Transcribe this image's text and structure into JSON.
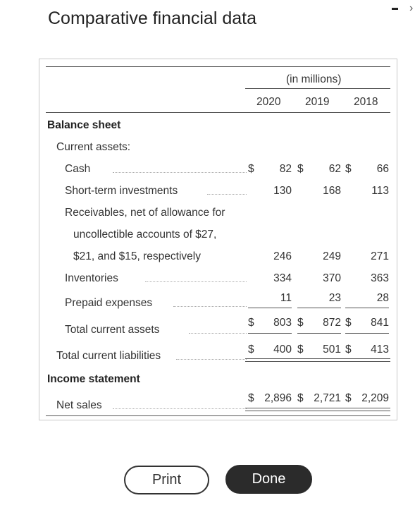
{
  "title": "Comparative financial data",
  "header": {
    "unit": "(in millions)",
    "years": [
      "2020",
      "2019",
      "2018"
    ]
  },
  "balance_sheet": {
    "heading": "Balance sheet",
    "current_assets_label": "Current assets:",
    "cash": {
      "label": "Cash",
      "dollar_sign": "$",
      "values": [
        "82",
        "62",
        "66"
      ]
    },
    "short_term_investments": {
      "label": "Short-term investments",
      "values": [
        "130",
        "168",
        "113"
      ]
    },
    "receivables": {
      "label_line1": "Receivables, net of allowance for",
      "label_line2": "uncollectible accounts of $27,",
      "label_line3": "$21, and $15, respectively",
      "values": [
        "246",
        "249",
        "271"
      ]
    },
    "inventories": {
      "label": "Inventories",
      "values": [
        "334",
        "370",
        "363"
      ]
    },
    "prepaid_expenses": {
      "label": "Prepaid expenses",
      "values": [
        "11",
        "23",
        "28"
      ]
    },
    "total_current_assets": {
      "label": "Total current assets",
      "dollar_sign": "$",
      "values": [
        "803",
        "872",
        "841"
      ]
    },
    "total_current_liabilities": {
      "label": "Total current liabilities",
      "dollar_sign": "$",
      "values": [
        "400",
        "501",
        "413"
      ]
    }
  },
  "income_statement": {
    "heading": "Income statement",
    "net_sales": {
      "label": "Net sales",
      "dollar_sign": "$",
      "values": [
        "2,896",
        "2,721",
        "2,209"
      ]
    }
  },
  "buttons": {
    "print": "Print",
    "done": "Done"
  }
}
